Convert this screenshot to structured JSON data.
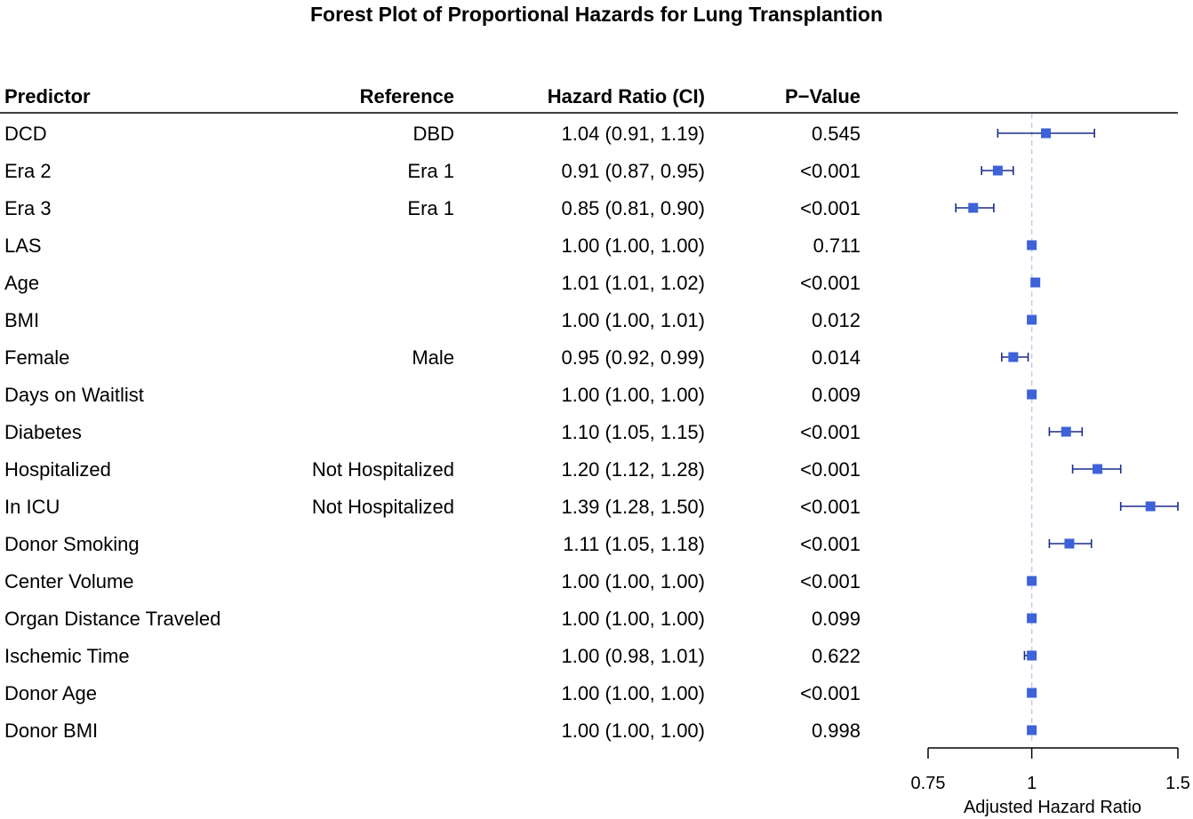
{
  "chart_data": {
    "type": "forest",
    "title": "Forest Plot of Proportional Hazards for Lung Transplantion",
    "columns": {
      "predictor": "Predictor",
      "reference": "Reference",
      "hazard_ratio": "Hazard Ratio (CI)",
      "p_value": "P−Value"
    },
    "rows": [
      {
        "predictor": "DCD",
        "reference": "DBD",
        "hr_text": "1.04 (0.91, 1.19)",
        "p_text": "0.545",
        "hr": 1.04,
        "lo": 0.91,
        "hi": 1.19
      },
      {
        "predictor": "Era 2",
        "reference": "Era 1",
        "hr_text": "0.91 (0.87, 0.95)",
        "p_text": "<0.001",
        "hr": 0.91,
        "lo": 0.87,
        "hi": 0.95
      },
      {
        "predictor": "Era 3",
        "reference": "Era 1",
        "hr_text": "0.85 (0.81, 0.90)",
        "p_text": "<0.001",
        "hr": 0.85,
        "lo": 0.81,
        "hi": 0.9
      },
      {
        "predictor": "LAS",
        "reference": "",
        "hr_text": "1.00 (1.00, 1.00)",
        "p_text": "0.711",
        "hr": 1.0,
        "lo": 1.0,
        "hi": 1.0
      },
      {
        "predictor": "Age",
        "reference": "",
        "hr_text": "1.01 (1.01, 1.02)",
        "p_text": "<0.001",
        "hr": 1.01,
        "lo": 1.01,
        "hi": 1.02
      },
      {
        "predictor": "BMI",
        "reference": "",
        "hr_text": "1.00 (1.00, 1.01)",
        "p_text": "0.012",
        "hr": 1.0,
        "lo": 1.0,
        "hi": 1.01
      },
      {
        "predictor": "Female",
        "reference": "Male",
        "hr_text": "0.95 (0.92, 0.99)",
        "p_text": "0.014",
        "hr": 0.95,
        "lo": 0.92,
        "hi": 0.99
      },
      {
        "predictor": "Days on Waitlist",
        "reference": "",
        "hr_text": "1.00 (1.00, 1.00)",
        "p_text": "0.009",
        "hr": 1.0,
        "lo": 1.0,
        "hi": 1.0
      },
      {
        "predictor": "Diabetes",
        "reference": "",
        "hr_text": "1.10 (1.05, 1.15)",
        "p_text": "<0.001",
        "hr": 1.1,
        "lo": 1.05,
        "hi": 1.15
      },
      {
        "predictor": "Hospitalized",
        "reference": "Not Hospitalized",
        "hr_text": "1.20 (1.12, 1.28)",
        "p_text": "<0.001",
        "hr": 1.2,
        "lo": 1.12,
        "hi": 1.28
      },
      {
        "predictor": "In ICU",
        "reference": "Not Hospitalized",
        "hr_text": "1.39 (1.28, 1.50)",
        "p_text": "<0.001",
        "hr": 1.39,
        "lo": 1.28,
        "hi": 1.5
      },
      {
        "predictor": "Donor Smoking",
        "reference": "",
        "hr_text": "1.11 (1.05, 1.18)",
        "p_text": "<0.001",
        "hr": 1.11,
        "lo": 1.05,
        "hi": 1.18
      },
      {
        "predictor": "Center Volume",
        "reference": "",
        "hr_text": "1.00 (1.00, 1.00)",
        "p_text": "<0.001",
        "hr": 1.0,
        "lo": 1.0,
        "hi": 1.0
      },
      {
        "predictor": "Organ Distance Traveled",
        "reference": "",
        "hr_text": "1.00 (1.00, 1.00)",
        "p_text": "0.099",
        "hr": 1.0,
        "lo": 1.0,
        "hi": 1.0
      },
      {
        "predictor": "Ischemic Time",
        "reference": "",
        "hr_text": "1.00 (0.98, 1.01)",
        "p_text": "0.622",
        "hr": 1.0,
        "lo": 0.98,
        "hi": 1.01
      },
      {
        "predictor": "Donor Age",
        "reference": "",
        "hr_text": "1.00 (1.00, 1.00)",
        "p_text": "<0.001",
        "hr": 1.0,
        "lo": 1.0,
        "hi": 1.0
      },
      {
        "predictor": "Donor BMI",
        "reference": "",
        "hr_text": "1.00 (1.00, 1.00)",
        "p_text": "0.998",
        "hr": 1.0,
        "lo": 1.0,
        "hi": 1.0
      }
    ],
    "xaxis": {
      "label": "Adjusted Hazard Ratio",
      "ticks": [
        0.75,
        1,
        1.5
      ],
      "tick_labels": [
        "0.75",
        "1",
        "1.5"
      ],
      "scale": "log",
      "range": [
        0.75,
        1.5
      ],
      "reference_line": 1
    },
    "grid": false,
    "colors": {
      "point": "#3d62d9",
      "ci_line": "#1c2c8c",
      "reference_line": "#c6cbe9",
      "rule": "#000000"
    }
  }
}
